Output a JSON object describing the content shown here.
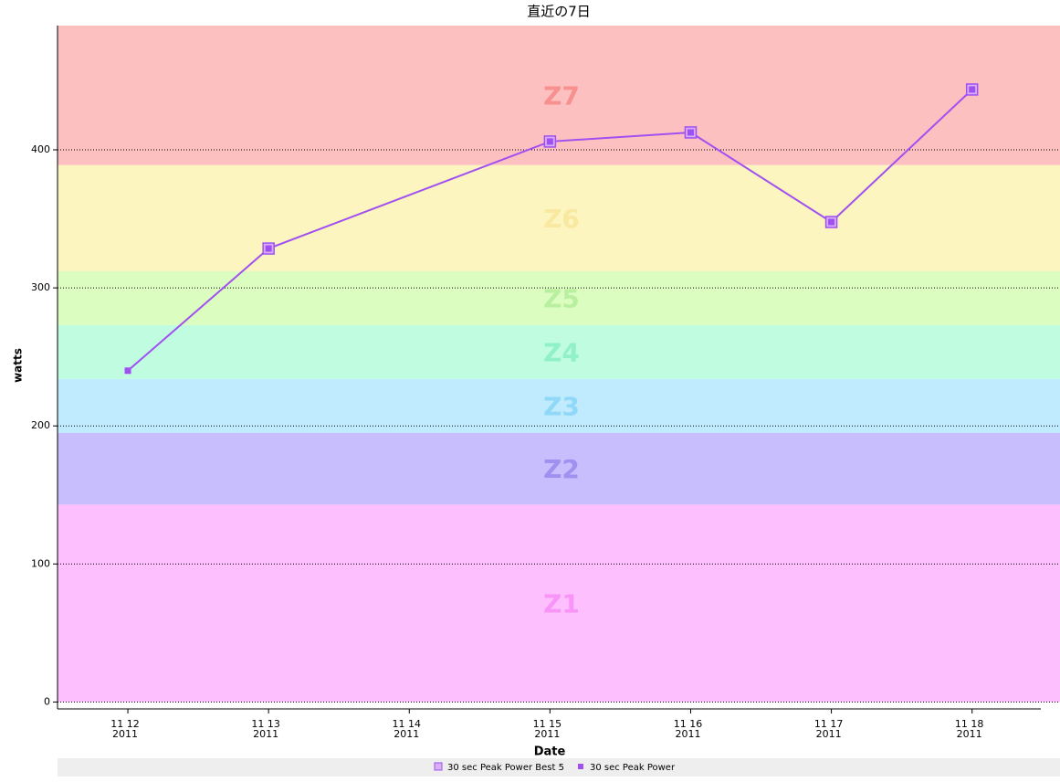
{
  "chart_data": {
    "type": "line",
    "title": "直近の7日",
    "x_label": "Date",
    "y_label": "watts",
    "x": [
      "2011-11-12",
      "2011-11-13",
      "2011-11-15",
      "2011-11-16",
      "2011-11-17",
      "2011-11-18"
    ],
    "xlim": [
      "2011-11-11T12:00:00Z",
      "2011-11-18T15:00:00Z"
    ],
    "xticks": [
      {
        "value": "2011-11-12",
        "label": "11 12 2011"
      },
      {
        "value": "2011-11-13",
        "label": "11 13 2011"
      },
      {
        "value": "2011-11-14",
        "label": "11 14 2011"
      },
      {
        "value": "2011-11-15",
        "label": "11 15 2011"
      },
      {
        "value": "2011-11-16",
        "label": "11 16 2011"
      },
      {
        "value": "2011-11-17",
        "label": "11 17 2011"
      },
      {
        "value": "2011-11-18",
        "label": "11 18 2011"
      }
    ],
    "ylim": [
      -5,
      490
    ],
    "yticks": [
      0,
      100,
      200,
      300,
      400
    ],
    "grid": true,
    "zones": [
      {
        "name": "Z1",
        "from": 0,
        "to": 143,
        "color": "#fdbffd",
        "label_color": "#f894f8"
      },
      {
        "name": "Z2",
        "from": 143,
        "to": 195,
        "color": "#c8befd",
        "label_color": "#a090f0"
      },
      {
        "name": "Z3",
        "from": 195,
        "to": 234,
        "color": "#c0eafd",
        "label_color": "#90d8f8"
      },
      {
        "name": "Z4",
        "from": 234,
        "to": 273,
        "color": "#c0fde0",
        "label_color": "#90f0c8"
      },
      {
        "name": "Z5",
        "from": 273,
        "to": 312,
        "color": "#dcfdc0",
        "label_color": "#b8f0a0"
      },
      {
        "name": "Z6",
        "from": 312,
        "to": 389,
        "color": "#fdf5c0",
        "label_color": "#f8e8a0"
      },
      {
        "name": "Z7",
        "from": 389,
        "to": 490,
        "color": "#fdc0c0",
        "label_color": "#f89090"
      }
    ],
    "series": [
      {
        "name": "30 sec Peak Power Best 5",
        "color": "#a050f0",
        "marker": "hollow-square",
        "values": [
          null,
          328.5,
          406,
          412.6,
          347.7,
          443.7
        ]
      },
      {
        "name": "30 sec Peak Power",
        "color": "#a050f0",
        "marker": "square",
        "values": [
          240,
          328.5,
          406,
          412.6,
          347.7,
          443.7
        ]
      }
    ]
  }
}
